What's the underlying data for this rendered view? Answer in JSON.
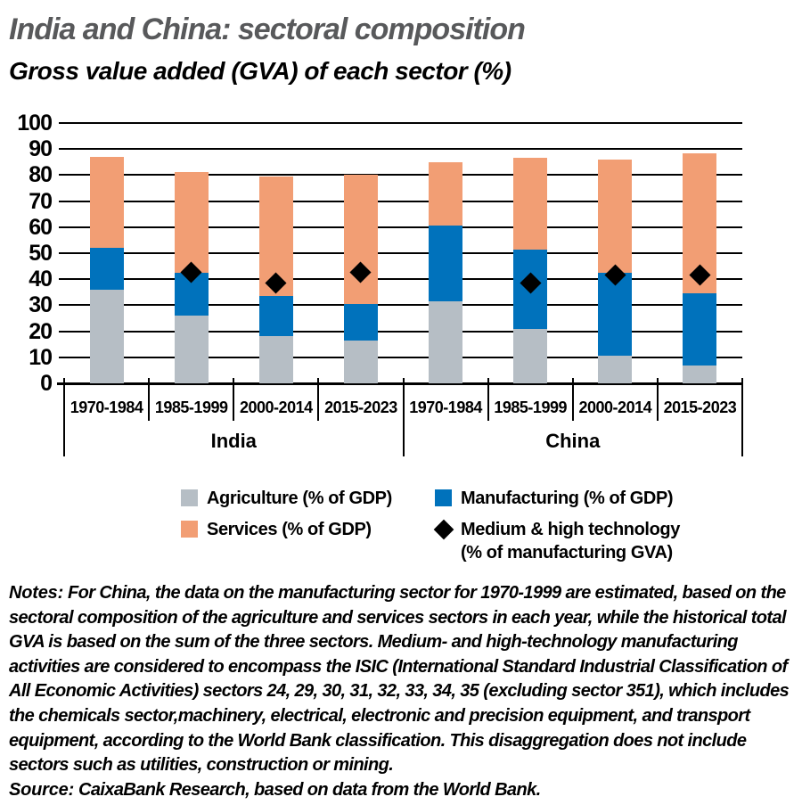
{
  "title": "India and China: sectoral composition",
  "subtitle": "Gross value added (GVA) of each sector (%)",
  "chart_data": {
    "type": "bar",
    "stacked": true,
    "title": "India and China: sectoral composition",
    "subtitle": "Gross value added (GVA) of each sector (%)",
    "ylabel": "Gross value added of each sector (%)",
    "ylim": [
      0,
      100
    ],
    "yticks": [
      0,
      10,
      20,
      30,
      40,
      50,
      60,
      70,
      80,
      90,
      100
    ],
    "grid": "horizontal",
    "groups": [
      "India",
      "China"
    ],
    "categories": [
      "1970-1984",
      "1985-1999",
      "2000-2014",
      "2015-2023",
      "1970-1984",
      "1985-1999",
      "2000-2014",
      "2015-2023"
    ],
    "series": [
      {
        "name": "Agriculture (% of GDP)",
        "color": "#b6bec5",
        "values": [
          36,
          26,
          18,
          16.5,
          31.5,
          21,
          10.5,
          7
        ]
      },
      {
        "name": "Manufacturing (% of GDP)",
        "color": "#0072bc",
        "values": [
          16,
          16.5,
          15.5,
          14,
          29,
          30.5,
          32,
          27.5
        ]
      },
      {
        "name": "Services (% of GDP)",
        "color": "#f29e74",
        "values": [
          35,
          38.5,
          46,
          49.5,
          24.5,
          35,
          43.5,
          54
        ]
      }
    ],
    "markers": {
      "name": "Medium & high technology (% of manufacturing GVA)",
      "shape": "diamond",
      "color": "#000000",
      "values": [
        null,
        42.5,
        38.5,
        42.5,
        null,
        38.5,
        41.5,
        41.5
      ]
    },
    "legend_position": "bottom"
  },
  "legend": {
    "agriculture": "Agriculture (% of GDP)",
    "manufacturing": "Manufacturing (% of GDP)",
    "services": "Services (% of GDP)",
    "tech_line1": "Medium & high technology",
    "tech_line2": "(% of manufacturing GVA)"
  },
  "notes": {
    "label": "Notes:",
    "text": "For China, the data on the manufacturing sector for 1970-1999 are estimated, based on the sectoral composition of the agriculture and services sectors in each year, while the historical total GVA is based on the sum of the three sectors. Medium- and high-technology manufacturing activities are considered to encompass the ISIC (International Standard Industrial Classification of All Economic Activities) sectors 24, 29, 30, 31, 32, 33, 34, 35 (excluding sector 351), which includes the chemicals sector,machinery, electrical, electronic and precision equipment, and transport equipment, according to the World Bank classification. This disaggregation does not include sectors such as utilities, construction or mining."
  },
  "source": {
    "label": "Source:",
    "text": "CaixaBank Research, based on data from the World Bank."
  },
  "colors": {
    "agriculture": "#b6bec5",
    "manufacturing": "#0072bc",
    "services": "#f29e74",
    "marker": "#000000",
    "title": "#58595b",
    "axis": "#000000"
  }
}
